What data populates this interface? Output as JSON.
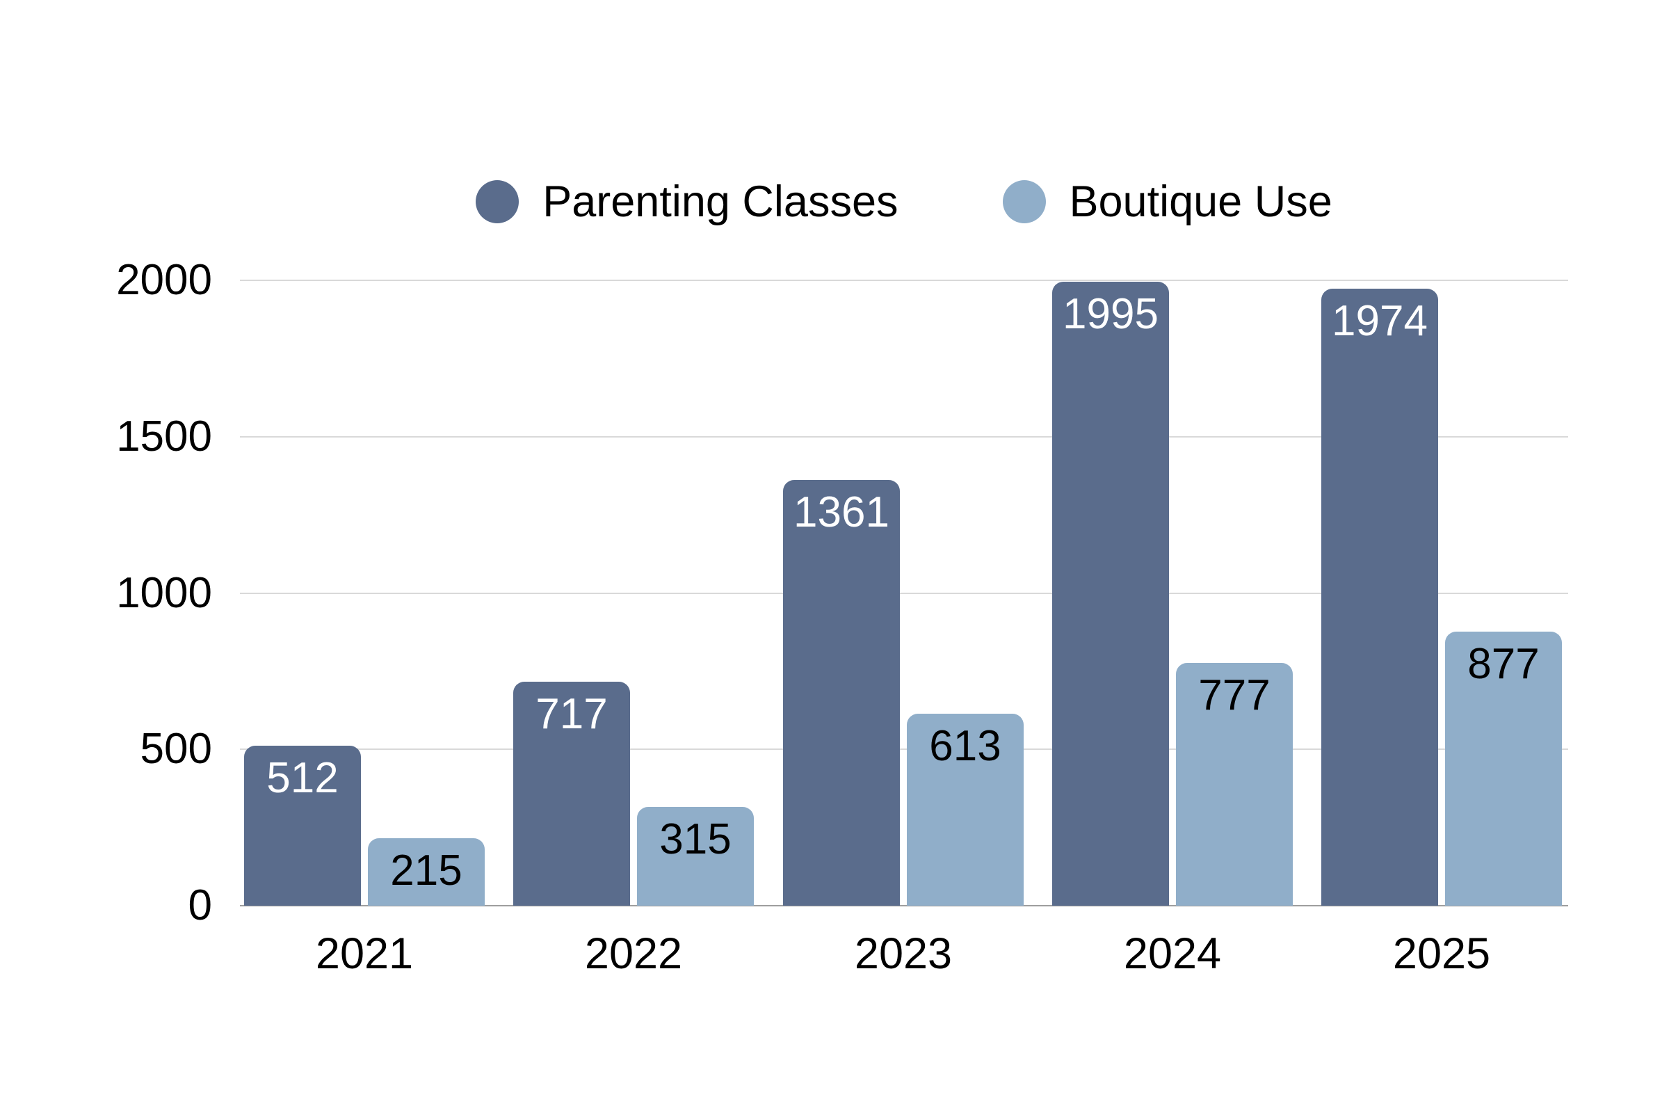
{
  "chart_data": {
    "type": "bar",
    "title": "",
    "categories": [
      "2021",
      "2022",
      "2023",
      "2024",
      "2025"
    ],
    "series": [
      {
        "name": "Parenting Classes",
        "color": "#5a6c8c",
        "label_color": "#ffffff",
        "values": [
          512,
          717,
          1361,
          1995,
          1974
        ]
      },
      {
        "name": "Boutique Use",
        "color": "#90aec9",
        "label_color": "#000000",
        "values": [
          215,
          315,
          613,
          777,
          877
        ]
      }
    ],
    "xlabel": "",
    "ylabel": "",
    "ylim": [
      0,
      2000
    ],
    "yticks": [
      0,
      500,
      1000,
      1500,
      2000
    ],
    "grid": "horizontal",
    "legend_position": "top-center",
    "value_labels": "inside-top"
  },
  "style_colors": {
    "gridline": "#d9d9d9",
    "baseline": "#9e9e9e",
    "axis_text": "#000000",
    "background": "#ffffff"
  }
}
